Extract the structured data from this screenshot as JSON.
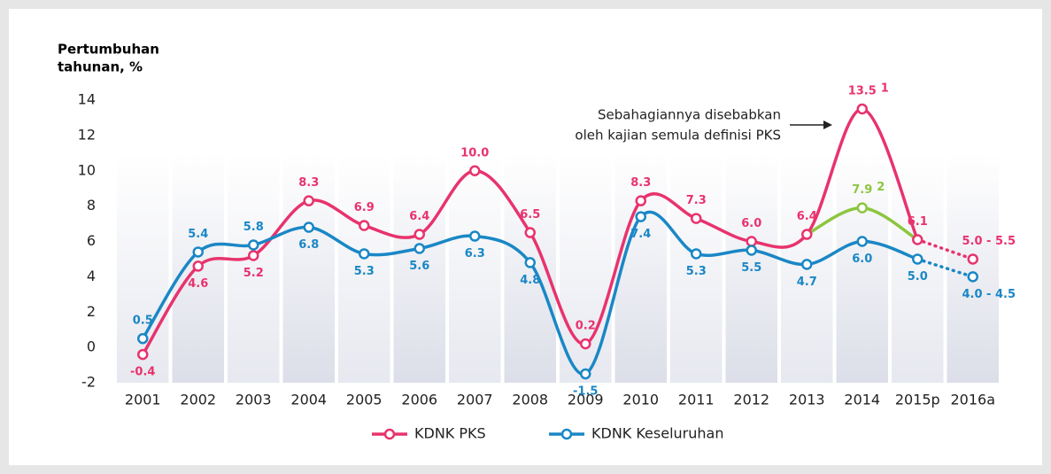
{
  "chart_data": {
    "type": "line",
    "y_label": [
      "Pertumbuhan",
      "tahunan, %"
    ],
    "categories": [
      "2001",
      "2002",
      "2003",
      "2004",
      "2005",
      "2006",
      "2007",
      "2008",
      "2009",
      "2010",
      "2011",
      "2012",
      "2013",
      "2014",
      "2015p",
      "2016a"
    ],
    "ylim": [
      -2,
      14
    ],
    "yticks": [
      -2,
      0,
      2,
      4,
      6,
      8,
      10,
      12,
      14
    ],
    "dotted_from": 14,
    "series": [
      {
        "name": "KDNK PKS",
        "color": "#e8336d",
        "values": [
          -0.4,
          4.6,
          5.2,
          8.3,
          6.9,
          6.4,
          10.0,
          6.5,
          0.2,
          8.3,
          7.3,
          6.0,
          6.4,
          13.5,
          6.1,
          5.0
        ],
        "value_labels": [
          "-0.4",
          "4.6",
          "5.2",
          "8.3",
          "6.9",
          "6.4",
          "10.0",
          "6.5",
          "0.2",
          "8.3",
          "7.3",
          "6.0",
          "6.4",
          "13.5",
          "6.1",
          "5.0 - 5.5"
        ],
        "value_notes": [
          null,
          null,
          null,
          null,
          null,
          null,
          null,
          null,
          null,
          null,
          null,
          null,
          null,
          "1",
          null,
          null
        ]
      },
      {
        "name": "KDNK Keseluruhan",
        "color": "#1a87c5",
        "values": [
          0.5,
          5.4,
          5.8,
          6.8,
          5.3,
          5.6,
          6.3,
          4.8,
          -1.5,
          7.4,
          5.3,
          5.5,
          4.7,
          6.0,
          5.0,
          4.0
        ],
        "value_labels": [
          "0.5",
          "5.4",
          "5.8",
          "6.8",
          "5.3",
          "5.6",
          "6.3",
          "4.8",
          "-1.5",
          "7.4",
          "5.3",
          "5.5",
          "4.7",
          "6.0",
          "5.0",
          "4.0 - 4.5"
        ]
      }
    ],
    "alt_series": {
      "color": "#8cc63f",
      "values": [
        null,
        null,
        null,
        null,
        null,
        null,
        null,
        null,
        null,
        null,
        null,
        null,
        6.4,
        7.9,
        6.1,
        null
      ],
      "value_labels": [
        null,
        null,
        null,
        null,
        null,
        null,
        null,
        null,
        null,
        null,
        null,
        null,
        null,
        "7.9",
        null,
        null
      ],
      "value_notes": [
        null,
        null,
        null,
        null,
        null,
        null,
        null,
        null,
        null,
        null,
        null,
        null,
        null,
        "2",
        null,
        null
      ]
    },
    "annotation": [
      "Sebahagiannya disebabkan",
      "oleh kajian semula definisi PKS"
    ]
  }
}
